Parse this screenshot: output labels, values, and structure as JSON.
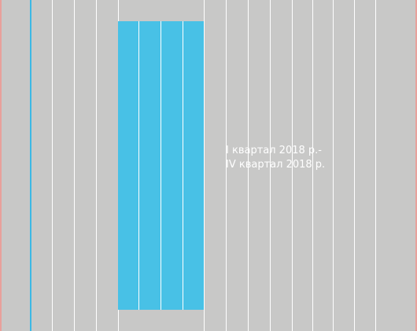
{
  "period_label": {
    "line1": "І квартал 2018 р.-",
    "line2": "IV квартал 2018 р."
  },
  "colors": {
    "background": "#c8c8c7",
    "grid_line": "#ffffff",
    "accent_line": "#3cb8e5",
    "highlight_block": "#48c1e6",
    "edge": "#e8a09b"
  }
}
